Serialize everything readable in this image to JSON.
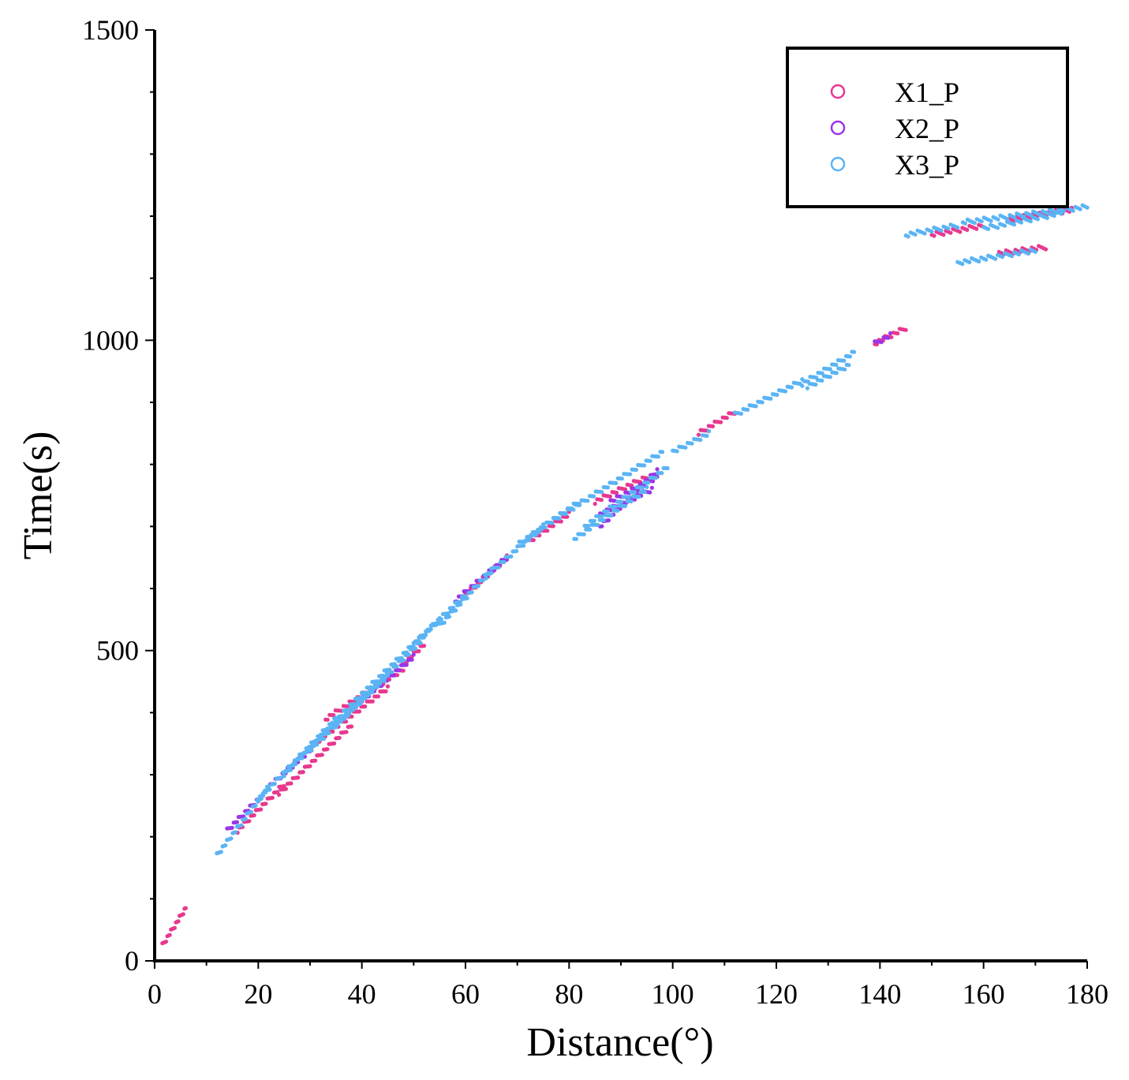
{
  "chart_data": {
    "type": "scatter",
    "xlabel": "Distance(°)",
    "ylabel": "Time(s)",
    "xlim": [
      0,
      180
    ],
    "ylim": [
      0,
      1500
    ],
    "x_ticks": [
      0,
      20,
      40,
      60,
      80,
      100,
      120,
      140,
      160,
      180
    ],
    "y_ticks": [
      0,
      500,
      1000,
      1500
    ],
    "x_tick_labels": [
      "0",
      "20",
      "40",
      "60",
      "80",
      "100",
      "120",
      "140",
      "160",
      "180"
    ],
    "y_tick_labels": [
      "0",
      "500",
      "1000",
      "1500"
    ],
    "grid": false,
    "legend_position": "top-right",
    "marker": "open-circle",
    "series": [
      {
        "name": "X1_P",
        "color": "#e8388f",
        "segments": [
          [
            [
              1.5,
              25
            ],
            [
              6,
              85
            ]
          ],
          [
            [
              16,
              210
            ],
            [
              25,
              285
            ]
          ],
          [
            [
              24,
              270
            ],
            [
              38,
              380
            ]
          ],
          [
            [
              33,
              390
            ],
            [
              48,
              470
            ]
          ],
          [
            [
              30,
              345
            ],
            [
              45,
              440
            ]
          ],
          [
            [
              48,
              480
            ],
            [
              52,
              510
            ]
          ],
          [
            [
              60,
              590
            ],
            [
              68,
              650
            ]
          ],
          [
            [
              72,
              675
            ],
            [
              80,
              720
            ]
          ],
          [
            [
              85,
              740
            ],
            [
              95,
              780
            ]
          ],
          [
            [
              105,
              850
            ],
            [
              112,
              885
            ]
          ],
          [
            [
              139,
              995
            ],
            [
              145,
              1020
            ]
          ],
          [
            [
              150,
              1170
            ],
            [
              160,
              1185
            ]
          ],
          [
            [
              165,
              1195
            ],
            [
              177,
              1210
            ]
          ],
          [
            [
              163,
              1140
            ],
            [
              172,
              1150
            ]
          ]
        ]
      },
      {
        "name": "X2_P",
        "color": "#9b35e8",
        "segments": [
          [
            [
              14,
              210
            ],
            [
              20,
              260
            ]
          ],
          [
            [
              22,
              280
            ],
            [
              30,
              340
            ]
          ],
          [
            [
              40,
              420
            ],
            [
              50,
              490
            ]
          ],
          [
            [
              58,
              580
            ],
            [
              68,
              650
            ]
          ],
          [
            [
              86,
              700
            ],
            [
              97,
              790
            ]
          ],
          [
            [
              86,
              720
            ],
            [
              96,
              760
            ]
          ],
          [
            [
              88,
              740
            ],
            [
              97,
              780
            ]
          ],
          [
            [
              139,
              995
            ],
            [
              142,
              1008
            ]
          ]
        ]
      },
      {
        "name": "X3_P",
        "color": "#5ab4f4",
        "segments": [
          [
            [
              12,
              170
            ],
            [
              22,
              280
            ]
          ],
          [
            [
              20,
              260
            ],
            [
              35,
              390
            ]
          ],
          [
            [
              25,
              300
            ],
            [
              40,
              430
            ]
          ],
          [
            [
              30,
              340
            ],
            [
              45,
              460
            ]
          ],
          [
            [
              35,
              380
            ],
            [
              52,
              520
            ]
          ],
          [
            [
              40,
              430
            ],
            [
              55,
              550
            ]
          ],
          [
            [
              50,
              510
            ],
            [
              60,
              590
            ]
          ],
          [
            [
              55,
              540
            ],
            [
              65,
              630
            ]
          ],
          [
            [
              64,
              620
            ],
            [
              75,
              700
            ]
          ],
          [
            [
              70,
              670
            ],
            [
              82,
              740
            ]
          ],
          [
            [
              75,
              700
            ],
            [
              98,
              820
            ]
          ],
          [
            [
              81,
              680
            ],
            [
              95,
              760
            ]
          ],
          [
            [
              83,
              700
            ],
            [
              99,
              795
            ]
          ],
          [
            [
              100,
              820
            ],
            [
              107,
              850
            ]
          ],
          [
            [
              112,
              880
            ],
            [
              125,
              935
            ]
          ],
          [
            [
              125,
              930
            ],
            [
              135,
              980
            ]
          ],
          [
            [
              126,
              925
            ],
            [
              134,
              960
            ]
          ],
          [
            [
              145,
              1170
            ],
            [
              155,
              1185
            ]
          ],
          [
            [
              156,
              1190
            ],
            [
              180,
              1215
            ]
          ],
          [
            [
              155,
              1125
            ],
            [
              170,
              1145
            ]
          ],
          [
            [
              160,
              1180
            ],
            [
              175,
              1205
            ]
          ]
        ]
      }
    ]
  }
}
